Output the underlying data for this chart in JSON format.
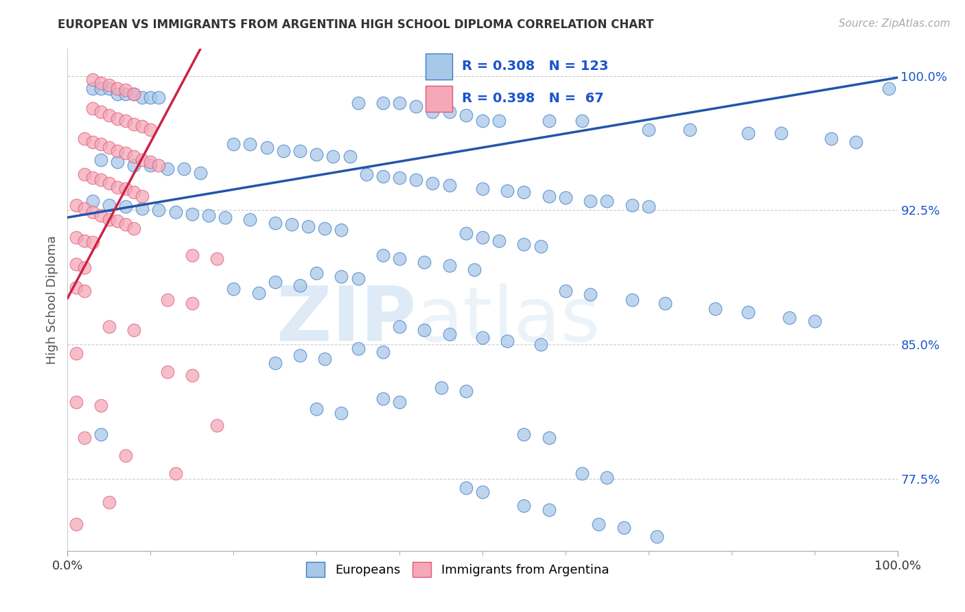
{
  "title": "EUROPEAN VS IMMIGRANTS FROM ARGENTINA HIGH SCHOOL DIPLOMA CORRELATION CHART",
  "source": "Source: ZipAtlas.com",
  "ylabel": "High School Diploma",
  "xlabel": "",
  "watermark_zip": "ZIP",
  "watermark_atlas": "atlas",
  "xlim": [
    0.0,
    1.0
  ],
  "ylim": [
    0.735,
    1.015
  ],
  "yticks": [
    0.775,
    0.85,
    0.925,
    1.0
  ],
  "ytick_labels": [
    "77.5%",
    "85.0%",
    "92.5%",
    "100.0%"
  ],
  "xtick_labels": [
    "0.0%",
    "100.0%"
  ],
  "xticks": [
    0.0,
    1.0
  ],
  "blue_R": 0.308,
  "blue_N": 123,
  "pink_R": 0.398,
  "pink_N": 67,
  "blue_color": "#a8c8e8",
  "pink_color": "#f4a8b8",
  "blue_edge_color": "#3a7bc8",
  "pink_edge_color": "#e05878",
  "blue_line_color": "#2255aa",
  "pink_line_color": "#cc2244",
  "title_color": "#333333",
  "source_color": "#aaaaaa",
  "legend_color": "#1a55cc",
  "blue_scatter": [
    [
      0.03,
      0.993
    ],
    [
      0.04,
      0.993
    ],
    [
      0.05,
      0.993
    ],
    [
      0.06,
      0.99
    ],
    [
      0.07,
      0.99
    ],
    [
      0.08,
      0.99
    ],
    [
      0.09,
      0.988
    ],
    [
      0.1,
      0.988
    ],
    [
      0.11,
      0.988
    ],
    [
      0.35,
      0.985
    ],
    [
      0.38,
      0.985
    ],
    [
      0.4,
      0.985
    ],
    [
      0.42,
      0.983
    ],
    [
      0.44,
      0.98
    ],
    [
      0.46,
      0.98
    ],
    [
      0.48,
      0.978
    ],
    [
      0.5,
      0.975
    ],
    [
      0.52,
      0.975
    ],
    [
      0.58,
      0.975
    ],
    [
      0.62,
      0.975
    ],
    [
      0.7,
      0.97
    ],
    [
      0.75,
      0.97
    ],
    [
      0.82,
      0.968
    ],
    [
      0.86,
      0.968
    ],
    [
      0.92,
      0.965
    ],
    [
      0.95,
      0.963
    ],
    [
      0.99,
      0.993
    ],
    [
      0.2,
      0.962
    ],
    [
      0.22,
      0.962
    ],
    [
      0.24,
      0.96
    ],
    [
      0.26,
      0.958
    ],
    [
      0.28,
      0.958
    ],
    [
      0.3,
      0.956
    ],
    [
      0.32,
      0.955
    ],
    [
      0.34,
      0.955
    ],
    [
      0.04,
      0.953
    ],
    [
      0.06,
      0.952
    ],
    [
      0.08,
      0.95
    ],
    [
      0.1,
      0.95
    ],
    [
      0.12,
      0.948
    ],
    [
      0.14,
      0.948
    ],
    [
      0.16,
      0.946
    ],
    [
      0.36,
      0.945
    ],
    [
      0.38,
      0.944
    ],
    [
      0.4,
      0.943
    ],
    [
      0.42,
      0.942
    ],
    [
      0.44,
      0.94
    ],
    [
      0.46,
      0.939
    ],
    [
      0.5,
      0.937
    ],
    [
      0.53,
      0.936
    ],
    [
      0.55,
      0.935
    ],
    [
      0.58,
      0.933
    ],
    [
      0.6,
      0.932
    ],
    [
      0.63,
      0.93
    ],
    [
      0.65,
      0.93
    ],
    [
      0.68,
      0.928
    ],
    [
      0.7,
      0.927
    ],
    [
      0.03,
      0.93
    ],
    [
      0.05,
      0.928
    ],
    [
      0.07,
      0.927
    ],
    [
      0.09,
      0.926
    ],
    [
      0.11,
      0.925
    ],
    [
      0.13,
      0.924
    ],
    [
      0.15,
      0.923
    ],
    [
      0.17,
      0.922
    ],
    [
      0.19,
      0.921
    ],
    [
      0.22,
      0.92
    ],
    [
      0.25,
      0.918
    ],
    [
      0.27,
      0.917
    ],
    [
      0.29,
      0.916
    ],
    [
      0.31,
      0.915
    ],
    [
      0.33,
      0.914
    ],
    [
      0.48,
      0.912
    ],
    [
      0.5,
      0.91
    ],
    [
      0.52,
      0.908
    ],
    [
      0.55,
      0.906
    ],
    [
      0.57,
      0.905
    ],
    [
      0.38,
      0.9
    ],
    [
      0.4,
      0.898
    ],
    [
      0.43,
      0.896
    ],
    [
      0.46,
      0.894
    ],
    [
      0.49,
      0.892
    ],
    [
      0.3,
      0.89
    ],
    [
      0.33,
      0.888
    ],
    [
      0.35,
      0.887
    ],
    [
      0.25,
      0.885
    ],
    [
      0.28,
      0.883
    ],
    [
      0.2,
      0.881
    ],
    [
      0.23,
      0.879
    ],
    [
      0.6,
      0.88
    ],
    [
      0.63,
      0.878
    ],
    [
      0.68,
      0.875
    ],
    [
      0.72,
      0.873
    ],
    [
      0.78,
      0.87
    ],
    [
      0.82,
      0.868
    ],
    [
      0.87,
      0.865
    ],
    [
      0.9,
      0.863
    ],
    [
      0.4,
      0.86
    ],
    [
      0.43,
      0.858
    ],
    [
      0.46,
      0.856
    ],
    [
      0.5,
      0.854
    ],
    [
      0.53,
      0.852
    ],
    [
      0.57,
      0.85
    ],
    [
      0.35,
      0.848
    ],
    [
      0.38,
      0.846
    ],
    [
      0.28,
      0.844
    ],
    [
      0.31,
      0.842
    ],
    [
      0.25,
      0.84
    ],
    [
      0.45,
      0.826
    ],
    [
      0.48,
      0.824
    ],
    [
      0.38,
      0.82
    ],
    [
      0.4,
      0.818
    ],
    [
      0.3,
      0.814
    ],
    [
      0.33,
      0.812
    ],
    [
      0.55,
      0.8
    ],
    [
      0.58,
      0.798
    ],
    [
      0.04,
      0.8
    ],
    [
      0.62,
      0.778
    ],
    [
      0.65,
      0.776
    ],
    [
      0.48,
      0.77
    ],
    [
      0.5,
      0.768
    ],
    [
      0.55,
      0.76
    ],
    [
      0.58,
      0.758
    ],
    [
      0.64,
      0.75
    ],
    [
      0.67,
      0.748
    ],
    [
      0.71,
      0.743
    ]
  ],
  "pink_scatter": [
    [
      0.03,
      0.998
    ],
    [
      0.04,
      0.996
    ],
    [
      0.05,
      0.995
    ],
    [
      0.06,
      0.993
    ],
    [
      0.07,
      0.992
    ],
    [
      0.08,
      0.99
    ],
    [
      0.03,
      0.982
    ],
    [
      0.04,
      0.98
    ],
    [
      0.05,
      0.978
    ],
    [
      0.06,
      0.976
    ],
    [
      0.07,
      0.975
    ],
    [
      0.08,
      0.973
    ],
    [
      0.09,
      0.972
    ],
    [
      0.1,
      0.97
    ],
    [
      0.02,
      0.965
    ],
    [
      0.03,
      0.963
    ],
    [
      0.04,
      0.962
    ],
    [
      0.05,
      0.96
    ],
    [
      0.06,
      0.958
    ],
    [
      0.07,
      0.957
    ],
    [
      0.08,
      0.955
    ],
    [
      0.09,
      0.953
    ],
    [
      0.1,
      0.952
    ],
    [
      0.11,
      0.95
    ],
    [
      0.02,
      0.945
    ],
    [
      0.03,
      0.943
    ],
    [
      0.04,
      0.942
    ],
    [
      0.05,
      0.94
    ],
    [
      0.06,
      0.938
    ],
    [
      0.07,
      0.937
    ],
    [
      0.08,
      0.935
    ],
    [
      0.09,
      0.933
    ],
    [
      0.01,
      0.928
    ],
    [
      0.02,
      0.926
    ],
    [
      0.03,
      0.924
    ],
    [
      0.04,
      0.922
    ],
    [
      0.05,
      0.92
    ],
    [
      0.06,
      0.919
    ],
    [
      0.07,
      0.917
    ],
    [
      0.08,
      0.915
    ],
    [
      0.01,
      0.91
    ],
    [
      0.02,
      0.908
    ],
    [
      0.03,
      0.907
    ],
    [
      0.15,
      0.9
    ],
    [
      0.18,
      0.898
    ],
    [
      0.01,
      0.895
    ],
    [
      0.02,
      0.893
    ],
    [
      0.01,
      0.882
    ],
    [
      0.02,
      0.88
    ],
    [
      0.12,
      0.875
    ],
    [
      0.15,
      0.873
    ],
    [
      0.05,
      0.86
    ],
    [
      0.08,
      0.858
    ],
    [
      0.01,
      0.845
    ],
    [
      0.12,
      0.835
    ],
    [
      0.15,
      0.833
    ],
    [
      0.01,
      0.818
    ],
    [
      0.04,
      0.816
    ],
    [
      0.18,
      0.805
    ],
    [
      0.02,
      0.798
    ],
    [
      0.07,
      0.788
    ],
    [
      0.13,
      0.778
    ],
    [
      0.05,
      0.762
    ],
    [
      0.01,
      0.75
    ]
  ],
  "blue_line": [
    [
      0.0,
      0.921
    ],
    [
      1.0,
      0.999
    ]
  ],
  "pink_line": [
    [
      0.0,
      0.876
    ],
    [
      0.16,
      1.015
    ]
  ]
}
